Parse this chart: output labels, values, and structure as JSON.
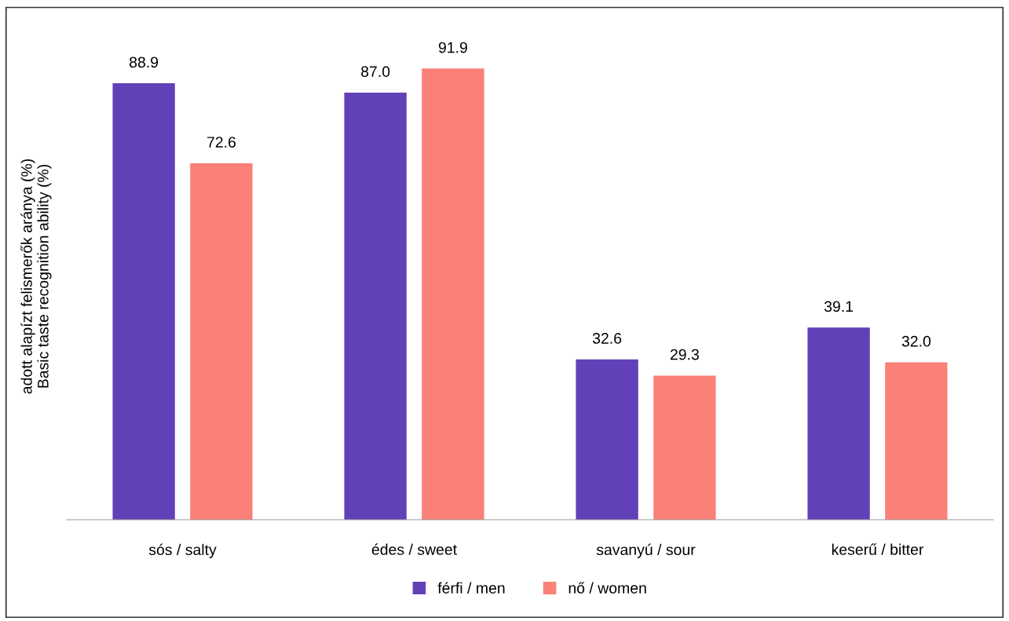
{
  "chart_data": {
    "type": "bar",
    "ylabel": "adott alapízt felismerők aránya (%)\nBasic taste recognition ability (%)",
    "categories": [
      "sós / salty",
      "édes / sweet",
      "savanyú / sour",
      "keserű / bitter"
    ],
    "series": [
      {
        "name": "férfi / men",
        "color": "#6241b8",
        "values": [
          88.9,
          87.0,
          32.6,
          39.1
        ],
        "value_labels": [
          "88.9",
          "87.0",
          "32.6",
          "39.1"
        ]
      },
      {
        "name": "nő / women",
        "color": "#fa8078",
        "values": [
          72.6,
          91.9,
          29.3,
          32.0
        ],
        "value_labels": [
          "72.6",
          "91.9",
          "29.3",
          "32.0"
        ]
      }
    ],
    "tick_labels": "x",
    "grid": false,
    "legend": "bottom"
  }
}
